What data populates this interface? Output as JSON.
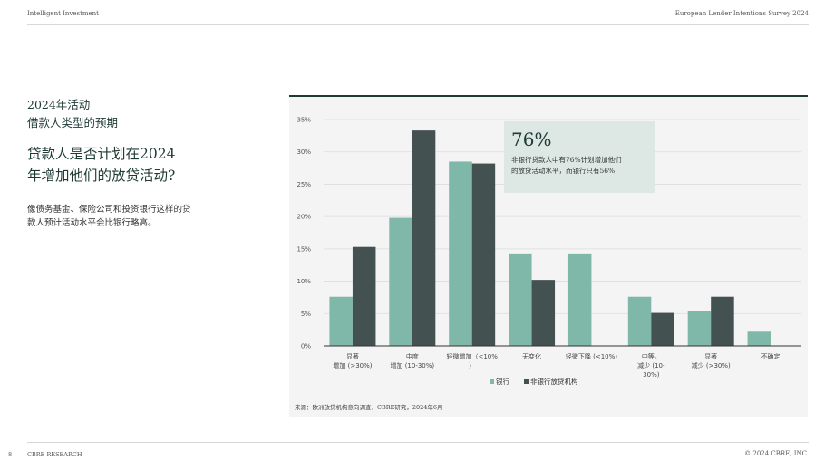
{
  "header": {
    "left": "Intelligent Investment",
    "right": "European Lender Intentions Survey 2024"
  },
  "section": {
    "title_line1": "2024年活动",
    "title_line2": "借款人类型的预期"
  },
  "question": {
    "line1": "贷款人是否计划在2024",
    "line2": "年增加他们的放贷活动?"
  },
  "description": {
    "line1": "像债务基金、保险公司和投资银行这样的贷",
    "line2": "款人预计活动水平会比银行略高。"
  },
  "callout": {
    "value": "76%",
    "line1": "非银行贷款人中有76%计划增加他们",
    "line2": "的放贷活动水平，而银行只有56%"
  },
  "source": "来源：欧洲放贷机构意向调查，CBRE研究，2024年6月",
  "footer": {
    "page": "8",
    "left": "CBRE RESEARCH",
    "right": "© 2024 CBRE, INC."
  },
  "colors": {
    "bank": "#7fb8a8",
    "nonbank": "#435250",
    "axis": "#333333",
    "grid": "#dcdcdc"
  },
  "chart_data": {
    "type": "bar",
    "categories": [
      [
        "显著",
        "增加 (>30%)"
      ],
      [
        "中度",
        "增加 (10-30%)"
      ],
      [
        "轻微增加（<10%",
        "）"
      ],
      [
        "无变化"
      ],
      [
        "轻微下降 (<10%)"
      ],
      [
        "中等。",
        "减少 (10-",
        "30%)"
      ],
      [
        "显著",
        "减少 (>30%)"
      ],
      [
        "不确定"
      ]
    ],
    "series": [
      {
        "name": "银行",
        "values": [
          7.6,
          19.8,
          28.5,
          14.3,
          14.3,
          7.6,
          5.4,
          2.2
        ]
      },
      {
        "name": "非银行放贷机构",
        "values": [
          15.3,
          33.3,
          28.2,
          10.2,
          0,
          5.1,
          7.6,
          0
        ]
      }
    ],
    "yticks": [
      "0%",
      "5%",
      "10%",
      "15%",
      "20%",
      "25%",
      "30%",
      "35%"
    ],
    "ylim": [
      0,
      35
    ],
    "grid": true,
    "legend": "bottom-center"
  }
}
